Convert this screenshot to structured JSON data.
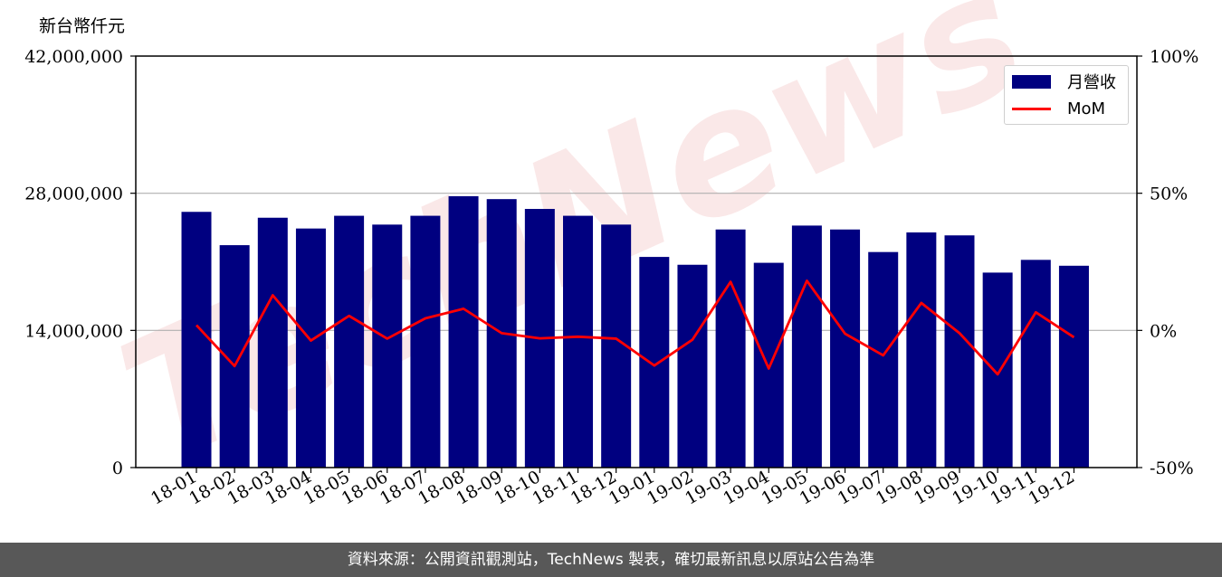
{
  "y_unit_label": "新台幣仟元",
  "footer": "資料來源：公開資訊觀測站，TechNews 製表，確切最新訊息以原站公告為準",
  "watermark": "TechNews",
  "colors": {
    "bar": "#000080",
    "line": "#ff0000",
    "footer_bg": "#585858",
    "watermark": "#f7d6d6"
  },
  "chart_data": {
    "type": "bar",
    "categories": [
      "18-01",
      "18-02",
      "18-03",
      "18-04",
      "18-05",
      "18-06",
      "18-07",
      "18-08",
      "18-09",
      "18-10",
      "18-11",
      "18-12",
      "19-01",
      "19-02",
      "19-03",
      "19-04",
      "19-05",
      "19-06",
      "19-07",
      "19-08",
      "19-09",
      "19-10",
      "19-11",
      "19-12"
    ],
    "series": [
      {
        "name": "月營收",
        "type": "bar",
        "axis": "left",
        "values": [
          26100000,
          22700000,
          25500000,
          24400000,
          25700000,
          24800000,
          25700000,
          27700000,
          27400000,
          26400000,
          25700000,
          24800000,
          21500000,
          20700000,
          24300000,
          20900000,
          24700000,
          24300000,
          22000000,
          24000000,
          23700000,
          19900000,
          21200000,
          20600000
        ]
      },
      {
        "name": "MoM",
        "type": "line",
        "axis": "right",
        "values": [
          1.9,
          -13.0,
          12.8,
          -3.7,
          5.3,
          -3.0,
          4.4,
          7.9,
          -1.0,
          -2.9,
          -2.3,
          -3.0,
          -12.8,
          -3.4,
          17.7,
          -13.9,
          18.1,
          -1.2,
          -9.1,
          10.0,
          -1.0,
          -16.0,
          6.6,
          -2.5
        ]
      }
    ],
    "y_left": {
      "ylim": [
        0,
        42000000
      ],
      "ticks": [
        "0",
        "14,000,000",
        "28,000,000",
        "42,000,000"
      ]
    },
    "y_right": {
      "ylim": [
        -50,
        100
      ],
      "ticks": [
        "-50%",
        "0%",
        "50%",
        "100%"
      ]
    },
    "grid": "horizontal",
    "legend_position": "top-right"
  }
}
